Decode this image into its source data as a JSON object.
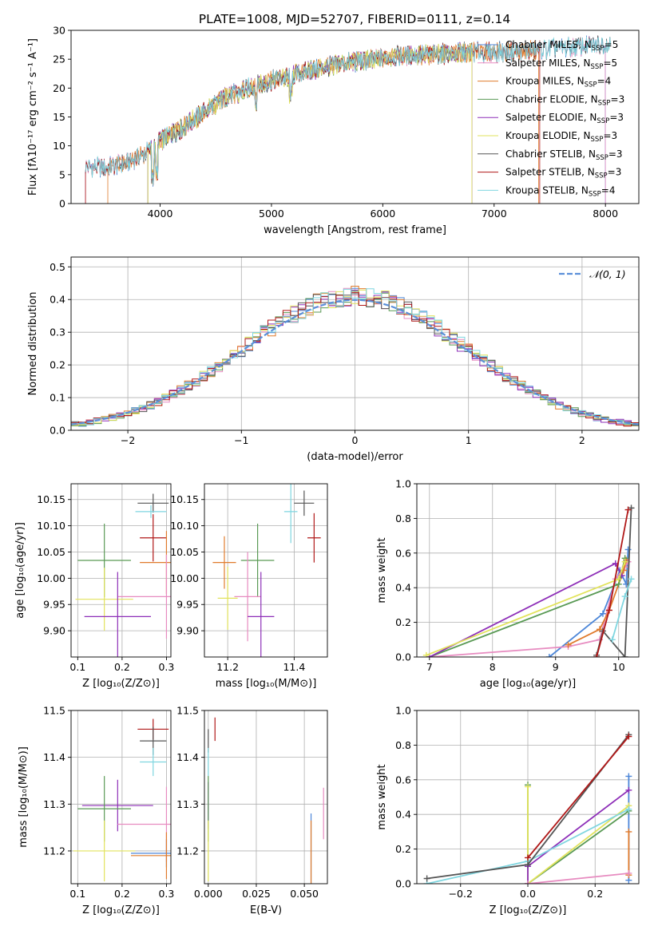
{
  "figure": {
    "title": "PLATE=1008, MJD=52707, FIBERID=0111, z=0.14",
    "colors": {
      "chabrier_miles": "#4c86d8",
      "salpeter_miles": "#e78bc0",
      "kroupa_miles": "#e07b2c",
      "chabrier_elodie": "#5a9a55",
      "salpeter_elodie": "#8e2fb8",
      "kroupa_elodie": "#e2e35c",
      "chabrier_stelib": "#555555",
      "salpeter_stelib": "#b01818",
      "kroupa_stelib": "#7fd6e0"
    }
  },
  "chart_data": [
    {
      "id": "spectrum",
      "type": "line",
      "xlabel": "wavelength [Angstrom, rest frame]",
      "ylabel": "Flux [fλ10⁻¹⁷ erg cm⁻² s⁻¹ A⁻¹]",
      "xlim": [
        3200,
        8300
      ],
      "ylim": [
        0,
        30
      ],
      "xticks": [
        "4000",
        "5000",
        "6000",
        "7000",
        "8000"
      ],
      "yticks": [
        "0",
        "5",
        "10",
        "15",
        "20",
        "25",
        "30"
      ],
      "legend": "top-right",
      "continuum": [
        [
          3330,
          6.4
        ],
        [
          3500,
          6.2
        ],
        [
          3700,
          7.0
        ],
        [
          3850,
          8.5
        ],
        [
          3950,
          10.0
        ],
        [
          4050,
          11.5
        ],
        [
          4200,
          13.0
        ],
        [
          4400,
          16.0
        ],
        [
          4600,
          18.5
        ],
        [
          4800,
          20.0
        ],
        [
          5000,
          21.2
        ],
        [
          5200,
          22.2
        ],
        [
          5400,
          23.2
        ],
        [
          5600,
          24.2
        ],
        [
          5800,
          24.6
        ],
        [
          6000,
          25.2
        ],
        [
          6200,
          25.6
        ],
        [
          6400,
          25.8
        ],
        [
          6600,
          26.0
        ],
        [
          6800,
          26.2
        ],
        [
          7000,
          26.2
        ],
        [
          7200,
          26.3
        ],
        [
          7400,
          26.6
        ],
        [
          7600,
          26.9
        ],
        [
          7800,
          27.3
        ],
        [
          8000,
          27.6
        ],
        [
          8050,
          27.7
        ]
      ],
      "series": [
        {
          "name": "Chabrier MILES, N_SSP=5",
          "color_key": "chabrier_miles",
          "range": [
            3330,
            8000
          ]
        },
        {
          "name": "Salpeter MILES, N_SSP=5",
          "color_key": "salpeter_miles",
          "range": [
            3330,
            8000
          ]
        },
        {
          "name": "Kroupa MILES, N_SSP=4",
          "color_key": "kroupa_miles",
          "range": [
            3530,
            7400
          ]
        },
        {
          "name": "Chabrier ELODIE, N_SSP=3",
          "color_key": "chabrier_elodie",
          "range": [
            3890,
            6800
          ]
        },
        {
          "name": "Salpeter ELODIE, N_SSP=3",
          "color_key": "salpeter_elodie",
          "range": [
            3890,
            6800
          ]
        },
        {
          "name": "Kroupa ELODIE, N_SSP=3",
          "color_key": "kroupa_elodie",
          "range": [
            3890,
            6800
          ]
        },
        {
          "name": "Chabrier STELIB, N_SSP=3",
          "color_key": "chabrier_stelib",
          "range": [
            3330,
            8050
          ]
        },
        {
          "name": "Salpeter STELIB, N_SSP=3",
          "color_key": "salpeter_stelib",
          "range": [
            3330,
            7410
          ]
        },
        {
          "name": "Kroupa STELIB, N_SSP=4",
          "color_key": "kroupa_stelib",
          "range": [
            3330,
            8050
          ]
        }
      ]
    },
    {
      "id": "residuals",
      "type": "line",
      "xlabel": "(data-model)/error",
      "ylabel": "Normed distribution",
      "xlim": [
        -2.5,
        2.5
      ],
      "ylim": [
        0,
        0.53
      ],
      "xticks": [
        "−2",
        "−1",
        "0",
        "1",
        "2"
      ],
      "yticks": [
        "0.0",
        "0.1",
        "0.2",
        "0.3",
        "0.4",
        "0.5"
      ],
      "grid": true,
      "legend": "top-right",
      "gaussian": {
        "name": "𝒩(0, 1)",
        "mean": 0,
        "sigma": 1,
        "color": "#5b8fd9"
      },
      "bin_width": 0.1,
      "base": [
        0.018,
        0.021,
        0.025,
        0.029,
        0.033,
        0.039,
        0.045,
        0.052,
        0.059,
        0.067,
        0.076,
        0.087,
        0.098,
        0.11,
        0.123,
        0.136,
        0.15,
        0.165,
        0.181,
        0.197,
        0.214,
        0.23,
        0.246,
        0.263,
        0.28,
        0.297,
        0.313,
        0.328,
        0.342,
        0.356,
        0.368,
        0.379,
        0.389,
        0.397,
        0.403,
        0.407,
        0.41,
        0.411,
        0.41,
        0.407,
        0.403,
        0.397,
        0.389,
        0.379,
        0.368,
        0.356,
        0.342,
        0.328,
        0.313,
        0.297,
        0.28,
        0.263,
        0.246,
        0.23,
        0.214,
        0.197,
        0.181,
        0.165,
        0.15,
        0.136,
        0.123,
        0.11,
        0.098,
        0.087,
        0.076,
        0.067,
        0.059,
        0.052,
        0.045,
        0.039,
        0.033,
        0.029,
        0.025,
        0.021,
        0.018
      ]
    },
    {
      "id": "age-vs-Z",
      "type": "scatter",
      "xlabel": "Z [log₁₀(Z/Z⊙)]",
      "ylabel": "age  [log₁₀(age/yr)]",
      "xlim": [
        0.085,
        0.31
      ],
      "ylim": [
        9.85,
        10.18
      ],
      "xticks": [
        "0.1",
        "0.2",
        "0.3"
      ],
      "yticks": [
        "9.90",
        "9.95",
        "10.00",
        "10.05",
        "10.10",
        "10.15"
      ],
      "grid": true,
      "points": [
        {
          "key": "chabrier_stelib",
          "x": 0.27,
          "xe": 0.035,
          "y": 10.143,
          "ye": 0.018
        },
        {
          "key": "kroupa_stelib",
          "x": 0.265,
          "xe": 0.035,
          "y": 10.127,
          "ye": 0.012
        },
        {
          "key": "salpeter_stelib",
          "x": 0.27,
          "xe": 0.03,
          "y": 10.077,
          "ye": 0.045
        },
        {
          "key": "kroupa_miles",
          "x": 0.3,
          "xe": 0.06,
          "y": 10.03,
          "ye": 0.06
        },
        {
          "key": "chabrier_elodie",
          "x": 0.16,
          "xe": 0.06,
          "y": 10.034,
          "ye": 0.07
        },
        {
          "key": "salpeter_miles",
          "x": 0.3,
          "xe": 0.11,
          "y": 9.965,
          "ye": 0.08
        },
        {
          "key": "kroupa_elodie",
          "x": 0.16,
          "xe": 0.065,
          "y": 9.96,
          "ye": 0.06
        },
        {
          "key": "salpeter_elodie",
          "x": 0.19,
          "xe": 0.075,
          "y": 9.927,
          "ye": 0.085
        }
      ]
    },
    {
      "id": "age-vs-mass",
      "type": "scatter",
      "xlabel": "mass [log₁₀(M/M⊙)]",
      "xlim": [
        11.13,
        11.5
      ],
      "ylim": [
        9.85,
        10.18
      ],
      "xticks": [
        "11.2",
        "11.4"
      ],
      "yticks": [
        "9.90",
        "9.95",
        "10.00",
        "10.05",
        "10.10",
        "10.15"
      ],
      "grid": true,
      "points": [
        {
          "key": "chabrier_stelib",
          "x": 11.43,
          "xe": 0.03,
          "y": 10.143,
          "ye": 0.024
        },
        {
          "key": "kroupa_stelib",
          "x": 11.39,
          "xe": 0.02,
          "y": 10.127,
          "ye": 0.06
        },
        {
          "key": "salpeter_stelib",
          "x": 11.46,
          "xe": 0.02,
          "y": 10.077,
          "ye": 0.047
        },
        {
          "key": "kroupa_miles",
          "x": 11.19,
          "xe": 0.035,
          "y": 10.03,
          "ye": 0.05
        },
        {
          "key": "chabrier_elodie",
          "x": 11.29,
          "xe": 0.05,
          "y": 10.034,
          "ye": 0.07
        },
        {
          "key": "salpeter_miles",
          "x": 11.26,
          "xe": 0.04,
          "y": 9.965,
          "ye": 0.085
        },
        {
          "key": "kroupa_elodie",
          "x": 11.2,
          "xe": 0.03,
          "y": 9.962,
          "ye": 0.06
        },
        {
          "key": "salpeter_elodie",
          "x": 11.3,
          "xe": 0.04,
          "y": 9.927,
          "ye": 0.085
        }
      ]
    },
    {
      "id": "weight-vs-age",
      "type": "line",
      "xlabel": "age  [log₁₀(age/yr)]",
      "ylabel": "mass weight",
      "xlim": [
        6.8,
        10.32
      ],
      "ylim": [
        0,
        1
      ],
      "xticks": [
        "7",
        "8",
        "9",
        "10"
      ],
      "yticks": [
        "0.0",
        "0.2",
        "0.4",
        "0.6",
        "0.8",
        "1.0"
      ],
      "grid": true,
      "series": [
        {
          "key": "chabrier_miles",
          "pts": [
            [
              8.9,
              0.0
            ],
            [
              9.75,
              0.25
            ],
            [
              10.02,
              0.5
            ],
            [
              10.12,
              0.42
            ],
            [
              10.15,
              0.62
            ]
          ]
        },
        {
          "key": "salpeter_miles",
          "pts": [
            [
              7.0,
              0.0
            ],
            [
              9.2,
              0.06
            ],
            [
              9.7,
              0.1
            ],
            [
              9.95,
              0.45
            ],
            [
              10.1,
              0.52
            ],
            [
              10.15,
              0.55
            ]
          ]
        },
        {
          "key": "kroupa_miles",
          "pts": [
            [
              9.2,
              0.07
            ],
            [
              9.7,
              0.16
            ],
            [
              9.85,
              0.27
            ],
            [
              10.08,
              0.5
            ],
            [
              10.12,
              0.56
            ]
          ]
        },
        {
          "key": "chabrier_elodie",
          "pts": [
            [
              7.0,
              0.0
            ],
            [
              10.0,
              0.42
            ],
            [
              10.1,
              0.57
            ]
          ]
        },
        {
          "key": "salpeter_elodie",
          "pts": [
            [
              7.0,
              0.0
            ],
            [
              9.95,
              0.54
            ],
            [
              10.05,
              0.47
            ]
          ]
        },
        {
          "key": "kroupa_elodie",
          "pts": [
            [
              6.95,
              0.01
            ],
            [
              10.0,
              0.45
            ],
            [
              10.1,
              0.55
            ]
          ]
        },
        {
          "key": "chabrier_stelib",
          "pts": [
            [
              9.65,
              0.01
            ],
            [
              9.75,
              0.15
            ],
            [
              10.1,
              0.0
            ],
            [
              10.2,
              0.86
            ]
          ]
        },
        {
          "key": "salpeter_stelib",
          "pts": [
            [
              9.65,
              0.0
            ],
            [
              9.85,
              0.27
            ],
            [
              10.15,
              0.85
            ]
          ]
        },
        {
          "key": "kroupa_stelib",
          "pts": [
            [
              9.9,
              0.1
            ],
            [
              10.1,
              0.35
            ],
            [
              10.2,
              0.45
            ]
          ]
        }
      ]
    },
    {
      "id": "mass-vs-Z",
      "type": "scatter",
      "xlabel": "Z [log₁₀(Z/Z⊙)]",
      "ylabel": "mass [log₁₀(M/M⊙)]",
      "xlim": [
        0.085,
        0.31
      ],
      "ylim": [
        11.13,
        11.5
      ],
      "xticks": [
        "0.1",
        "0.2",
        "0.3"
      ],
      "yticks": [
        "11.2",
        "11.3",
        "11.4",
        "11.5"
      ],
      "grid": true,
      "points": [
        {
          "key": "salpeter_stelib",
          "x": 0.27,
          "xe": 0.035,
          "y": 11.46,
          "ye": 0.022
        },
        {
          "key": "chabrier_stelib",
          "x": 0.27,
          "xe": 0.03,
          "y": 11.435,
          "ye": 0.03
        },
        {
          "key": "kroupa_stelib",
          "x": 0.27,
          "xe": 0.03,
          "y": 11.39,
          "ye": 0.03
        },
        {
          "key": "salpeter_elodie",
          "x": 0.19,
          "xe": 0.08,
          "y": 11.297,
          "ye": 0.055
        },
        {
          "key": "chabrier_elodie",
          "x": 0.16,
          "xe": 0.06,
          "y": 11.29,
          "ye": 0.07
        },
        {
          "key": "salpeter_miles",
          "x": 0.3,
          "xe": 0.11,
          "y": 11.257,
          "ye": 0.08
        },
        {
          "key": "kroupa_elodie",
          "x": 0.16,
          "xe": 0.07,
          "y": 11.2,
          "ye": 0.065
        },
        {
          "key": "chabrier_miles",
          "x": 0.3,
          "xe": 0.08,
          "y": 11.195,
          "ye": 0.03
        },
        {
          "key": "kroupa_miles",
          "x": 0.3,
          "xe": 0.08,
          "y": 11.19,
          "ye": 0.05
        }
      ]
    },
    {
      "id": "mass-vs-ebv",
      "type": "scatter",
      "xlabel": "E(B-V)",
      "xlim": [
        -0.002,
        0.062
      ],
      "ylim": [
        11.13,
        11.5
      ],
      "xticks": [
        "0.000",
        "0.025",
        "0.050"
      ],
      "yticks": [
        "11.2",
        "11.3",
        "11.4",
        "11.5"
      ],
      "grid": true,
      "points": [
        {
          "key": "salpeter_stelib",
          "x": 0.0035,
          "xe": 0,
          "y": 11.46,
          "ye": 0.025
        },
        {
          "key": "chabrier_stelib",
          "x": 0.0,
          "xe": 0,
          "y": 11.435,
          "ye": 0.025
        },
        {
          "key": "kroupa_stelib",
          "x": 0.0,
          "xe": 0,
          "y": 11.39,
          "ye": 0.03
        },
        {
          "key": "salpeter_elodie",
          "x": 0.0,
          "xe": 0,
          "y": 11.297,
          "ye": 0.05
        },
        {
          "key": "chabrier_elodie",
          "x": 0.0,
          "xe": 0,
          "y": 11.29,
          "ye": 0.07
        },
        {
          "key": "kroupa_elodie",
          "x": 0.0,
          "xe": 0,
          "y": 11.2,
          "ye": 0.065
        },
        {
          "key": "salpeter_miles",
          "x": 0.06,
          "xe": 0,
          "y": 11.28,
          "ye": 0.055
        },
        {
          "key": "chabrier_miles",
          "x": 0.0535,
          "xe": 0,
          "y": 11.2,
          "ye": 0.08
        },
        {
          "key": "kroupa_miles",
          "x": 0.0535,
          "xe": 0,
          "y": 11.19,
          "ye": 0.075
        }
      ]
    },
    {
      "id": "weight-vs-Z",
      "type": "line",
      "xlabel": "Z [log₁₀(Z/Z⊙)]",
      "ylabel": "mass weight",
      "xlim": [
        -0.33,
        0.33
      ],
      "ylim": [
        0,
        1
      ],
      "xticks": [
        "−0.2",
        "0.0",
        "0.2"
      ],
      "yticks": [
        "0.0",
        "0.2",
        "0.4",
        "0.6",
        "0.8",
        "1.0"
      ],
      "grid": true,
      "series": [
        {
          "key": "chabrier_miles",
          "pts": [
            [
              0.3,
              0.02
            ],
            [
              0.3,
              0.62
            ]
          ]
        },
        {
          "key": "kroupa_miles",
          "pts": [
            [
              0.3,
              0.05
            ],
            [
              0.3,
              0.3
            ]
          ]
        },
        {
          "key": "chabrier_elodie",
          "pts": [
            [
              0.0,
              0.57
            ],
            [
              0.0,
              0.0
            ],
            [
              0.3,
              0.42
            ]
          ]
        },
        {
          "key": "kroupa_elodie",
          "pts": [
            [
              0.0,
              0.56
            ],
            [
              0.0,
              0.0
            ],
            [
              0.3,
              0.45
            ]
          ]
        },
        {
          "key": "salpeter_elodie",
          "pts": [
            [
              0.0,
              0.0
            ],
            [
              0.0,
              0.1
            ],
            [
              0.3,
              0.54
            ]
          ]
        },
        {
          "key": "kroupa_stelib",
          "pts": [
            [
              -0.3,
              0.0
            ],
            [
              0.0,
              0.13
            ],
            [
              0.3,
              0.43
            ]
          ]
        },
        {
          "key": "chabrier_stelib",
          "pts": [
            [
              -0.3,
              0.03
            ],
            [
              0.0,
              0.11
            ],
            [
              0.3,
              0.86
            ]
          ]
        },
        {
          "key": "salpeter_stelib",
          "pts": [
            [
              0.0,
              0.15
            ],
            [
              0.3,
              0.85
            ]
          ]
        },
        {
          "key": "salpeter_miles",
          "pts": [
            [
              0.0,
              0.0
            ],
            [
              0.3,
              0.06
            ]
          ]
        }
      ]
    }
  ]
}
